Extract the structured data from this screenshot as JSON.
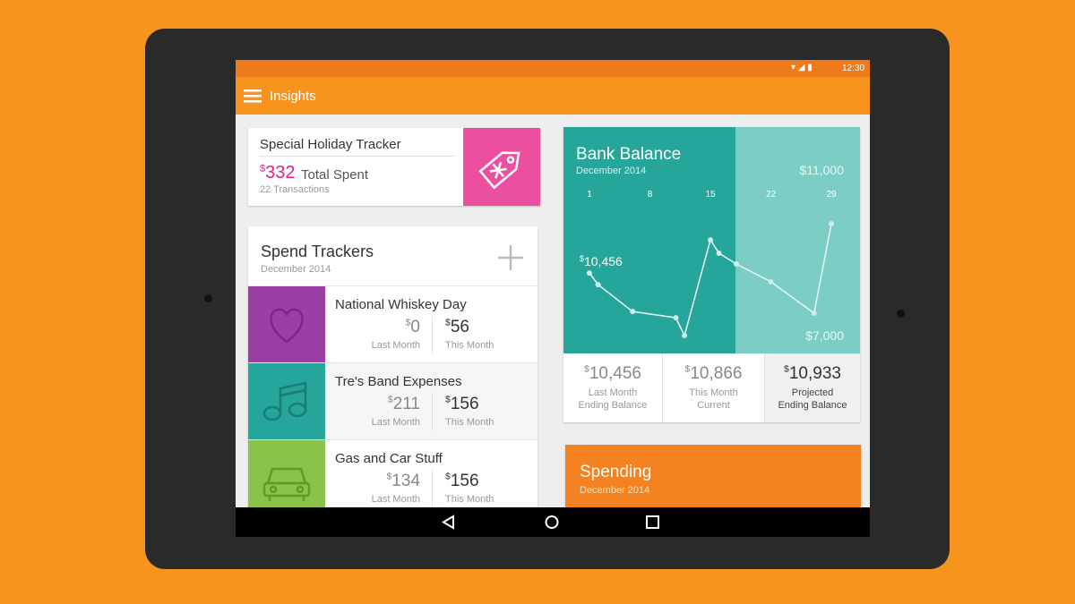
{
  "status_bar": {
    "time": "12:30"
  },
  "app_bar": {
    "title": "Insights"
  },
  "holiday_tracker": {
    "title": "Special Holiday Tracker",
    "currency": "$",
    "amount": "332",
    "label": "Total Spent",
    "transactions": "22 Transactions"
  },
  "spend_trackers": {
    "title": "Spend Trackers",
    "subtitle": "December 2014",
    "items": [
      {
        "name": "National Whiskey Day",
        "last_month": {
          "currency": "$",
          "amount": "0",
          "label": "Last Month"
        },
        "this_month": {
          "currency": "$",
          "amount": "56",
          "label": "This Month"
        }
      },
      {
        "name": "Tre's Band Expenses",
        "last_month": {
          "currency": "$",
          "amount": "211",
          "label": "Last Month"
        },
        "this_month": {
          "currency": "$",
          "amount": "156",
          "label": "This Month"
        }
      },
      {
        "name": "Gas and Car Stuff",
        "last_month": {
          "currency": "$",
          "amount": "134",
          "label": "Last Month"
        },
        "this_month": {
          "currency": "$",
          "amount": "156",
          "label": "This Month"
        }
      }
    ]
  },
  "bank_balance": {
    "title": "Bank Balance",
    "subtitle": "December 2014",
    "chart": {
      "type": "line",
      "x": [
        1,
        2,
        6,
        11,
        12,
        15,
        16,
        18,
        22,
        27,
        29
      ],
      "values": [
        8510,
        8230,
        7580,
        7430,
        7000,
        9310,
        8990,
        8730,
        8300,
        7540,
        9700
      ],
      "xlim": [
        1,
        29
      ],
      "xticks": [
        1,
        8,
        15,
        22,
        29
      ],
      "ylim": [
        7000,
        11000
      ],
      "yticks": [
        {
          "value": 11000,
          "label": "$11,000"
        },
        {
          "value": 7000,
          "label": "$7,000"
        }
      ],
      "annotation": {
        "currency": "$",
        "amount": "10,456"
      }
    },
    "stats": [
      {
        "currency": "$",
        "amount": "10,456",
        "lines": [
          "Last Month",
          "Ending Balance"
        ]
      },
      {
        "currency": "$",
        "amount": "10,866",
        "lines": [
          "This Month",
          "Current"
        ]
      },
      {
        "currency": "$",
        "amount": "10,933",
        "lines": [
          "Projected",
          "Ending Balance"
        ]
      }
    ]
  },
  "spending": {
    "title": "Spending",
    "subtitle": "December 2014"
  }
}
